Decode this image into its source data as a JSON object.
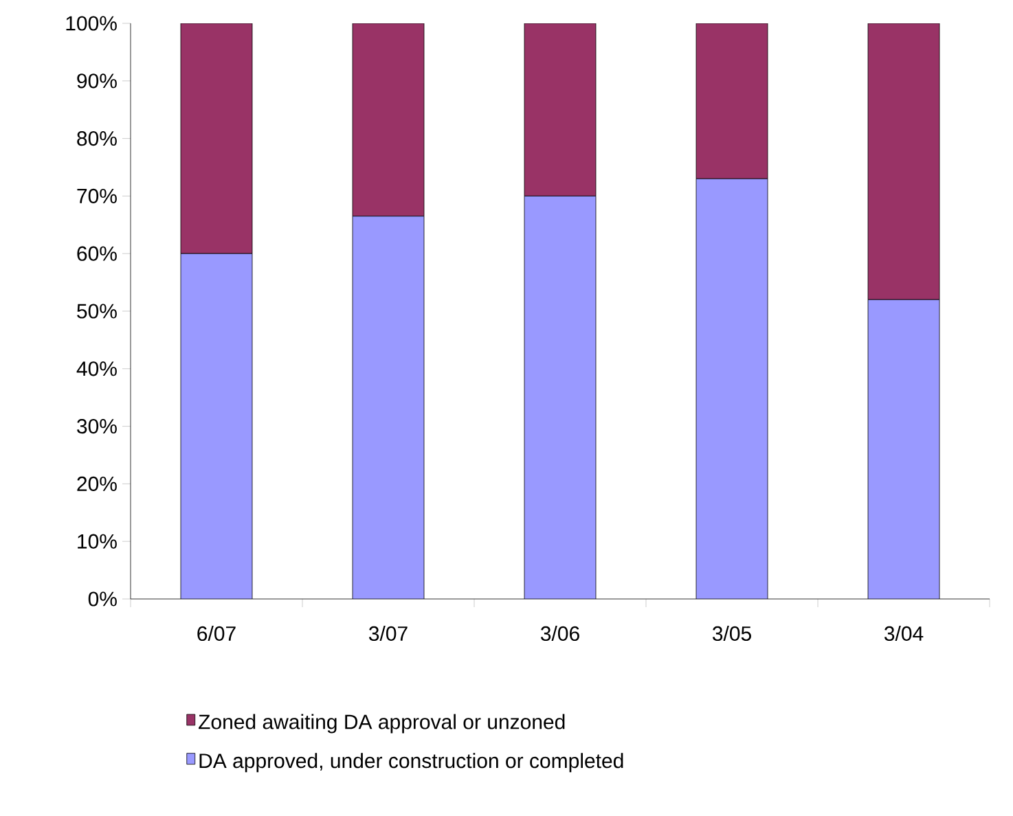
{
  "chart_data": {
    "type": "bar",
    "stacked": true,
    "categories": [
      "6/07",
      "3/07",
      "3/06",
      "3/05",
      "3/04"
    ],
    "series": [
      {
        "name": "DA approved, under construction or completed",
        "color": "#9999ff",
        "values": [
          60,
          66.5,
          70,
          73,
          52
        ]
      },
      {
        "name": "Zoned awaiting DA approval or unzoned",
        "color": "#993366",
        "values": [
          40,
          33.5,
          30,
          27,
          48
        ]
      }
    ],
    "ylim": [
      0,
      100
    ],
    "yticks": [
      {
        "value": 0,
        "label": "0%"
      },
      {
        "value": 10,
        "label": "10%"
      },
      {
        "value": 20,
        "label": "20%"
      },
      {
        "value": 30,
        "label": "30%"
      },
      {
        "value": 40,
        "label": "40%"
      },
      {
        "value": 50,
        "label": "50%"
      },
      {
        "value": 60,
        "label": "60%"
      },
      {
        "value": 70,
        "label": "70%"
      },
      {
        "value": 80,
        "label": "80%"
      },
      {
        "value": 90,
        "label": "90%"
      },
      {
        "value": 100,
        "label": "100%"
      }
    ],
    "grid": false,
    "legend": "bottom"
  }
}
